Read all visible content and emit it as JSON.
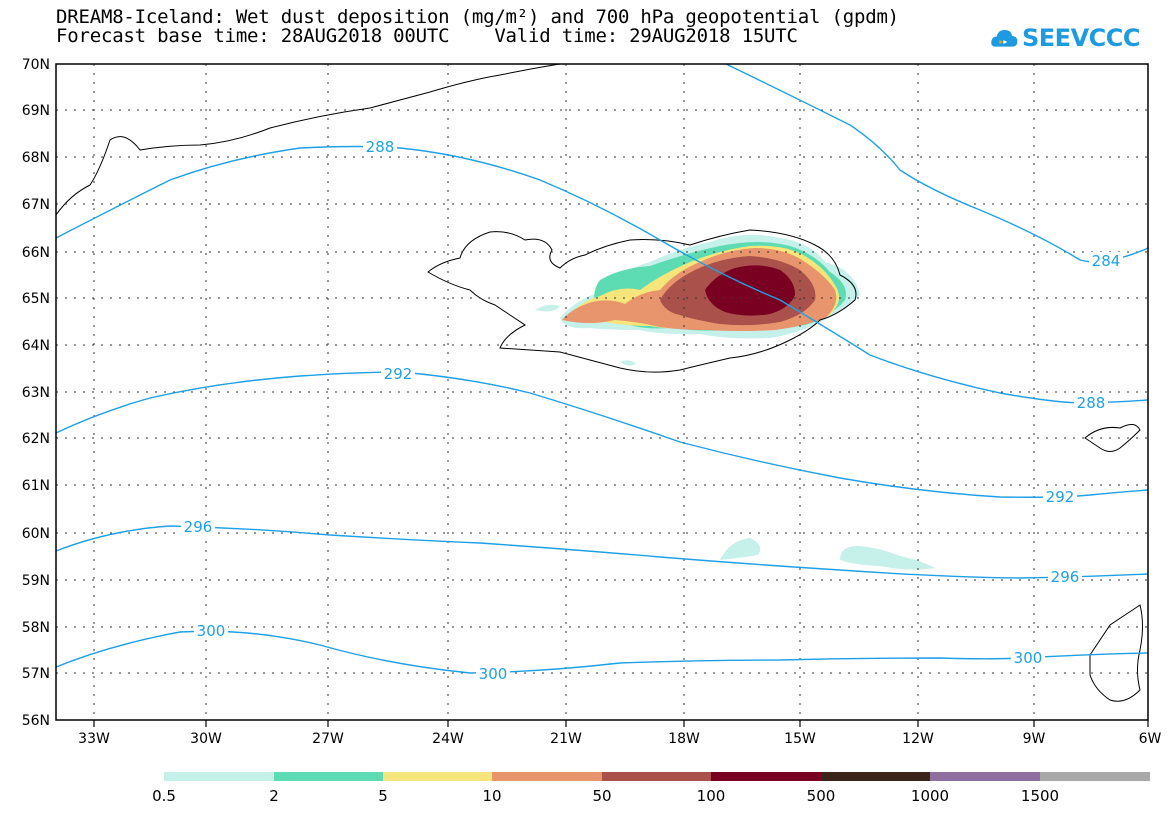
{
  "title_line1": "DREAM8-Iceland: Wet dust deposition (mg/m²) and 700 hPa geopotential (gpdm)",
  "title_line2": "Forecast base time: 28AUG2018 00UTC    Valid time: 29AUG2018 15UTC",
  "logo_text": "SEEVCCC",
  "map": {
    "lat_range": [
      56,
      70
    ],
    "lon_range": [
      -34.3,
      -6
    ],
    "lat_labels": [
      "70N",
      "69N",
      "68N",
      "67N",
      "66N",
      "65N",
      "64N",
      "63N",
      "62N",
      "61N",
      "60N",
      "59N",
      "58N",
      "57N",
      "56N"
    ],
    "lon_labels": [
      "33W",
      "30W",
      "27W",
      "24W",
      "21W",
      "18W",
      "15W",
      "12W",
      "9W",
      "6W"
    ],
    "contour_color": "#1ea0e6",
    "contours": [
      {
        "label": "284",
        "label_positions": [
          "284"
        ]
      },
      {
        "label": "288",
        "label_positions": [
          "288",
          "288"
        ]
      },
      {
        "label": "292",
        "label_positions": [
          "292",
          "292"
        ]
      },
      {
        "label": "296",
        "label_positions": [
          "296",
          "296"
        ]
      },
      {
        "label": "300",
        "label_positions": [
          "300",
          "300",
          "300"
        ]
      }
    ]
  },
  "legend": {
    "labels": [
      "0.5",
      "2",
      "5",
      "10",
      "50",
      "100",
      "500",
      "1000",
      "1500"
    ],
    "colors": [
      "#c6f0ea",
      "#5ddcb4",
      "#f5e57a",
      "#e8946c",
      "#a9514a",
      "#7a0022",
      "#3a2418",
      "#8f6fa0",
      "#a8a8a8"
    ]
  }
}
